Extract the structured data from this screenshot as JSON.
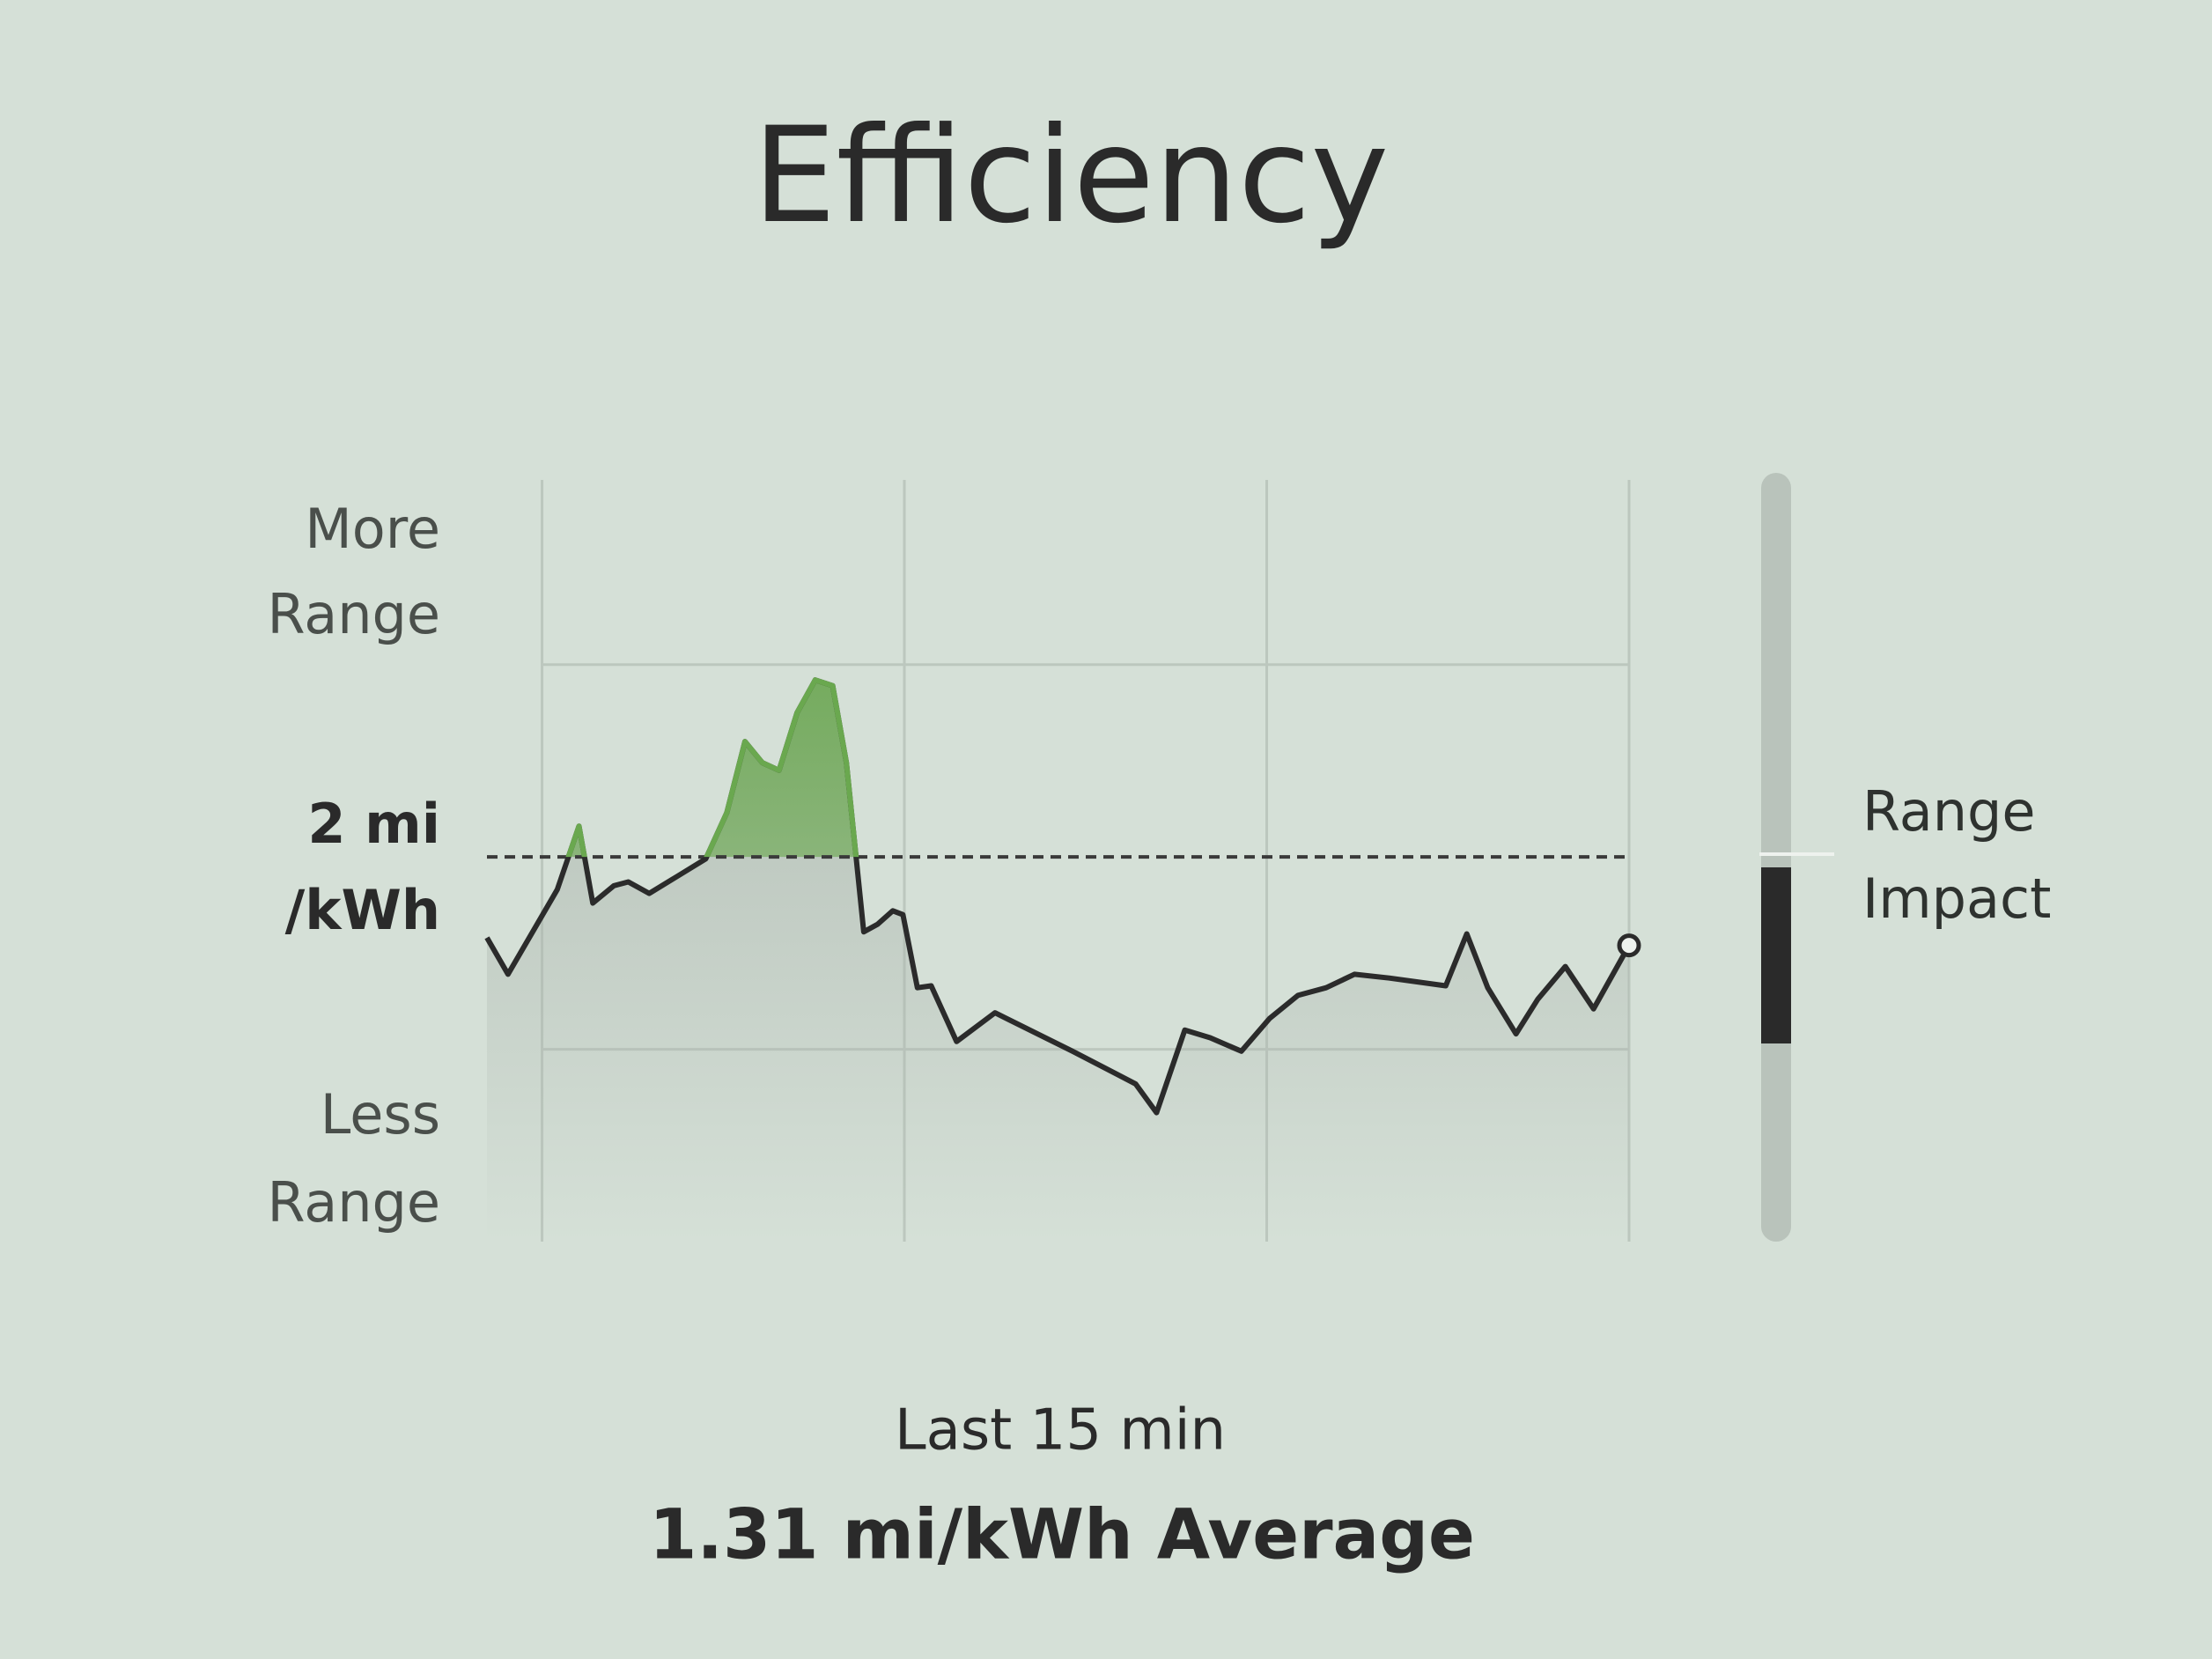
{
  "chart_data": {
    "type": "line",
    "title": "Efficiency",
    "y_label_top": [
      "More",
      "Range"
    ],
    "y_label_bottom": [
      "Less",
      "Range"
    ],
    "reference_line": {
      "value": 2,
      "label": [
        "2 mi",
        "/kWh"
      ]
    },
    "x": [
      -15.76,
      -15.47,
      -14.79,
      -14.49,
      -14.3,
      -14.01,
      -13.81,
      -13.52,
      -13.13,
      -12.74,
      -12.45,
      -12.2,
      -11.96,
      -11.73,
      -11.48,
      -11.23,
      -10.99,
      -10.8,
      -10.56,
      -10.37,
      -10.16,
      -10.02,
      -9.82,
      -9.63,
      -9.28,
      -8.75,
      -7.68,
      -6.81,
      -6.52,
      -6.13,
      -5.78,
      -5.35,
      -4.96,
      -4.57,
      -4.18,
      -3.79,
      -3.31,
      -2.53,
      -2.24,
      -1.95,
      -1.56,
      -1.26,
      -0.88,
      -0.49,
      0
    ],
    "values": [
      1.58,
      1.39,
      1.83,
      2.16,
      1.76,
      1.85,
      1.87,
      1.81,
      1.9,
      1.99,
      2.23,
      2.6,
      2.49,
      2.45,
      2.75,
      2.92,
      2.89,
      2.49,
      1.61,
      1.65,
      1.72,
      1.7,
      1.32,
      1.33,
      1.04,
      1.19,
      0.99,
      0.82,
      0.67,
      1.1,
      1.06,
      0.99,
      1.16,
      1.28,
      1.32,
      1.39,
      1.37,
      1.33,
      1.6,
      1.32,
      1.08,
      1.26,
      1.43,
      1.21,
      1.54
    ],
    "line_color": "#2b2b2b",
    "above_color": "#6aa84f",
    "below_color": "#a9b3ab",
    "xlim": [
      -15.76,
      0
    ],
    "ylim": [
      0,
      3.96
    ],
    "xgrid": [
      -15,
      -10,
      -5,
      0
    ],
    "ygrid": [
      1,
      3
    ],
    "x_label": "Last 15 min",
    "summary": "1.31 mi/kWh Average"
  },
  "range_impact": {
    "label": [
      "Range",
      "Impact"
    ]
  }
}
